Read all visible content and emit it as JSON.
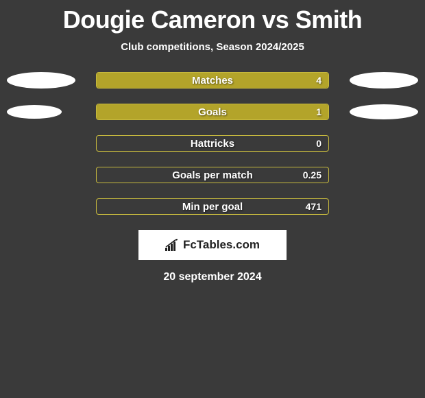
{
  "title": "Dougie Cameron vs Smith",
  "subtitle": "Club competitions, Season 2024/2025",
  "logo_text": "FcTables.com",
  "date": "20 september 2024",
  "background_color": "#3a3a3a",
  "accent_color": "#b3a42a",
  "accent_border_color": "#c8bb3e",
  "ellipse_color": "#ffffff",
  "logo_text_color": "#222222",
  "stats": [
    {
      "label": "Matches",
      "value": "4",
      "fill_ratio": 1.0,
      "left_ellipse": {
        "w": 100,
        "h": 24
      },
      "right_ellipse": {
        "w": 100,
        "h": 24
      }
    },
    {
      "label": "Goals",
      "value": "1",
      "fill_ratio": 1.0,
      "left_ellipse": {
        "w": 80,
        "h": 20
      },
      "right_ellipse": {
        "w": 100,
        "h": 22
      }
    },
    {
      "label": "Hattricks",
      "value": "0",
      "fill_ratio": 0.0,
      "left_ellipse": null,
      "right_ellipse": null
    },
    {
      "label": "Goals per match",
      "value": "0.25",
      "fill_ratio": 0.0,
      "left_ellipse": null,
      "right_ellipse": null
    },
    {
      "label": "Min per goal",
      "value": "471",
      "fill_ratio": 0.0,
      "left_ellipse": null,
      "right_ellipse": null
    }
  ]
}
